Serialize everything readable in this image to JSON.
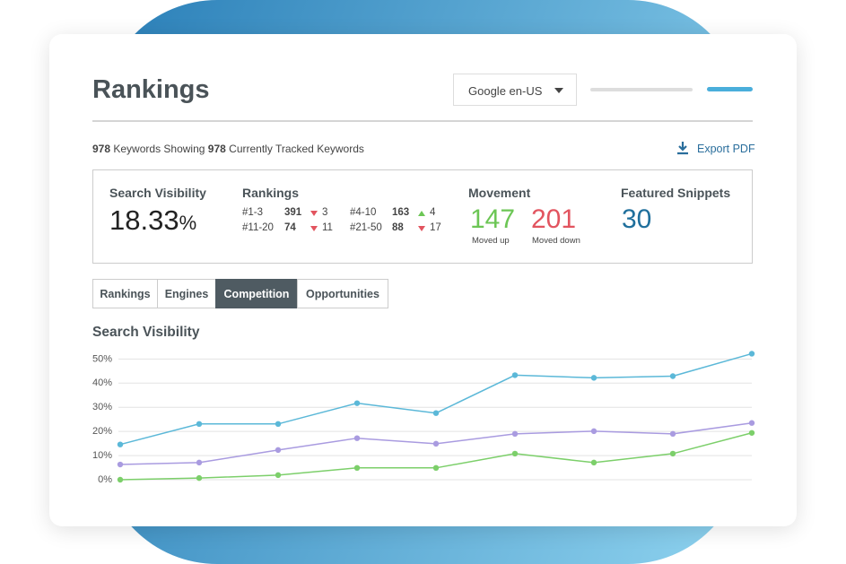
{
  "header": {
    "title": "Rankings",
    "dropdown": "Google en-US"
  },
  "summary": {
    "count1": 978,
    "text1": "Keywords Showing",
    "count2": 978,
    "text2": "Currently Tracked Keywords",
    "export": "Export PDF"
  },
  "stats": {
    "visibility": {
      "label": "Search Visibility",
      "value": 18.33,
      "unit": "%"
    },
    "rankings": {
      "label": "Rankings",
      "rows": [
        {
          "range": "#1-3",
          "count": 391,
          "change": 3,
          "direction": "down"
        },
        {
          "range": "#4-10",
          "count": 163,
          "change": 4,
          "direction": "up"
        },
        {
          "range": "#11-20",
          "count": 74,
          "change": 11,
          "direction": "down"
        },
        {
          "range": "#21-50",
          "count": 88,
          "change": 17,
          "direction": "down"
        }
      ]
    },
    "movement": {
      "label": "Movement",
      "up": 147,
      "up_label": "Moved up",
      "down": 201,
      "down_label": "Moved down"
    },
    "snippets": {
      "label": "Featured Snippets",
      "value": 30
    }
  },
  "tabs": {
    "items": [
      "Rankings",
      "Engines",
      "Competition",
      "Opportunities"
    ],
    "active": 2
  },
  "chart_data": {
    "type": "line",
    "title": "Search Visibility",
    "categories": [
      null,
      null,
      null,
      null,
      null,
      null,
      null,
      null,
      null
    ],
    "series": [
      {
        "color": "#5bb8d8",
        "values": [
          14.6,
          23.1,
          23.1,
          31.7,
          27.6,
          43.3,
          42.2,
          42.9,
          52.2
        ]
      },
      {
        "color": "#a99be0",
        "values": [
          6.3,
          7.1,
          12.3,
          17.2,
          14.9,
          19.0,
          20.1,
          19.0,
          23.5
        ]
      },
      {
        "color": "#7ccf6a",
        "values": [
          0,
          0.7,
          1.9,
          4.9,
          4.9,
          10.8,
          7.1,
          10.8,
          19.4
        ]
      }
    ],
    "ylim": [
      0,
      52
    ],
    "yticks": [
      {
        "value": 0,
        "label": "0%"
      },
      {
        "value": 10,
        "label": "10%"
      },
      {
        "value": 20,
        "label": "20%"
      },
      {
        "value": 30,
        "label": "30%"
      },
      {
        "value": 40,
        "label": "40%"
      },
      {
        "value": 50,
        "label": "50%"
      }
    ],
    "grid": true
  }
}
